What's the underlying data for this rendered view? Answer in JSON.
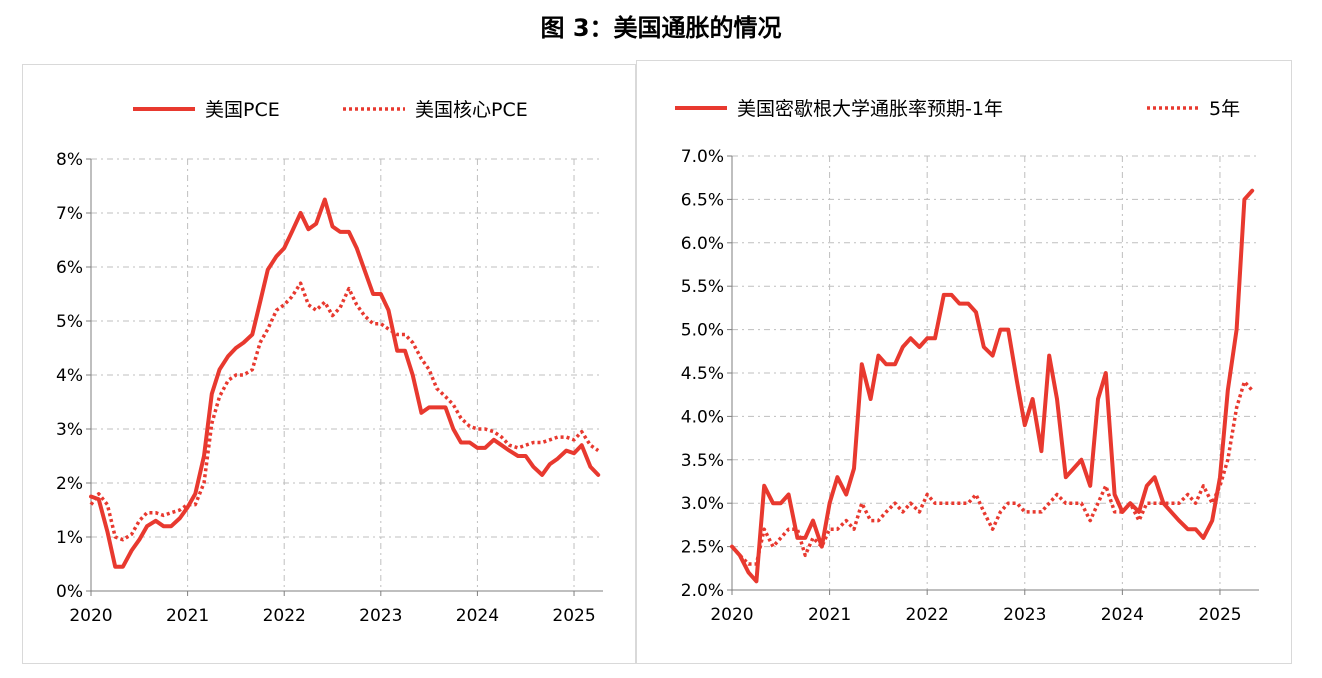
{
  "figure_title": "图 3：美国通胀的情况",
  "colors": {
    "series": "#e8392f",
    "grid": "#bfbfbf",
    "axis": "#7f7f7f"
  },
  "chart_data": [
    {
      "type": "line",
      "title": "",
      "xlabel": "",
      "ylabel": "",
      "x_ticks": [
        "2020",
        "2021",
        "2022",
        "2023",
        "2024",
        "2025"
      ],
      "y_ticks": [
        "0%",
        "1%",
        "2%",
        "3%",
        "4%",
        "5%",
        "6%",
        "7%",
        "8%"
      ],
      "xlim": [
        2020,
        2025.3
      ],
      "ylim": [
        0,
        8
      ],
      "grid": true,
      "legend_position": "top",
      "series": [
        {
          "name": "美国PCE",
          "style": "solid",
          "x": [
            2020.0,
            2020.08,
            2020.17,
            2020.25,
            2020.33,
            2020.42,
            2020.5,
            2020.58,
            2020.67,
            2020.75,
            2020.83,
            2020.92,
            2021.0,
            2021.08,
            2021.17,
            2021.25,
            2021.33,
            2021.42,
            2021.5,
            2021.58,
            2021.67,
            2021.75,
            2021.83,
            2021.92,
            2022.0,
            2022.08,
            2022.17,
            2022.25,
            2022.33,
            2022.42,
            2022.5,
            2022.58,
            2022.67,
            2022.75,
            2022.83,
            2022.92,
            2023.0,
            2023.08,
            2023.17,
            2023.25,
            2023.33,
            2023.42,
            2023.5,
            2023.58,
            2023.67,
            2023.75,
            2023.83,
            2023.92,
            2024.0,
            2024.08,
            2024.17,
            2024.25,
            2024.33,
            2024.42,
            2024.5,
            2024.58,
            2024.67,
            2024.75,
            2024.83,
            2024.92,
            2025.0,
            2025.08,
            2025.17,
            2025.25
          ],
          "values": [
            1.75,
            1.7,
            1.1,
            0.45,
            0.45,
            0.75,
            0.95,
            1.2,
            1.3,
            1.2,
            1.2,
            1.35,
            1.55,
            1.8,
            2.5,
            3.65,
            4.1,
            4.35,
            4.5,
            4.6,
            4.75,
            5.35,
            5.95,
            6.2,
            6.35,
            6.65,
            7.0,
            6.7,
            6.8,
            7.25,
            6.75,
            6.65,
            6.65,
            6.35,
            5.95,
            5.5,
            5.5,
            5.2,
            4.45,
            4.45,
            4.0,
            3.3,
            3.4,
            3.4,
            3.4,
            3.0,
            2.75,
            2.75,
            2.65,
            2.65,
            2.8,
            2.7,
            2.6,
            2.5,
            2.5,
            2.3,
            2.15,
            2.35,
            2.45,
            2.6,
            2.55,
            2.7,
            2.3,
            2.15
          ]
        },
        {
          "name": "美国核心PCE",
          "style": "dotted",
          "x": [
            2020.0,
            2020.08,
            2020.17,
            2020.25,
            2020.33,
            2020.42,
            2020.5,
            2020.58,
            2020.67,
            2020.75,
            2020.83,
            2020.92,
            2021.0,
            2021.08,
            2021.17,
            2021.25,
            2021.33,
            2021.42,
            2021.5,
            2021.58,
            2021.67,
            2021.75,
            2021.83,
            2021.92,
            2022.0,
            2022.08,
            2022.17,
            2022.25,
            2022.33,
            2022.42,
            2022.5,
            2022.58,
            2022.67,
            2022.75,
            2022.83,
            2022.92,
            2023.0,
            2023.08,
            2023.17,
            2023.25,
            2023.33,
            2023.42,
            2023.5,
            2023.58,
            2023.67,
            2023.75,
            2023.83,
            2023.92,
            2024.0,
            2024.08,
            2024.17,
            2024.25,
            2024.33,
            2024.42,
            2024.5,
            2024.58,
            2024.67,
            2024.75,
            2024.83,
            2024.92,
            2025.0,
            2025.08,
            2025.17,
            2025.25
          ],
          "values": [
            1.6,
            1.8,
            1.6,
            1.0,
            0.95,
            1.05,
            1.3,
            1.45,
            1.45,
            1.4,
            1.45,
            1.5,
            1.6,
            1.6,
            2.0,
            3.1,
            3.6,
            3.9,
            4.0,
            4.0,
            4.1,
            4.6,
            4.85,
            5.2,
            5.3,
            5.45,
            5.7,
            5.3,
            5.2,
            5.35,
            5.1,
            5.25,
            5.6,
            5.3,
            5.1,
            4.95,
            4.95,
            4.85,
            4.75,
            4.75,
            4.6,
            4.3,
            4.1,
            3.75,
            3.6,
            3.45,
            3.2,
            3.05,
            3.0,
            3.0,
            2.95,
            2.85,
            2.7,
            2.65,
            2.7,
            2.75,
            2.75,
            2.8,
            2.85,
            2.85,
            2.8,
            2.95,
            2.7,
            2.6
          ]
        }
      ]
    },
    {
      "type": "line",
      "title": "",
      "xlabel": "",
      "ylabel": "",
      "x_ticks": [
        "2020",
        "2021",
        "2022",
        "2023",
        "2024",
        "2025"
      ],
      "y_ticks": [
        "2.0%",
        "2.5%",
        "3.0%",
        "3.5%",
        "4.0%",
        "4.5%",
        "5.0%",
        "5.5%",
        "6.0%",
        "6.5%",
        "7.0%"
      ],
      "xlim": [
        2020,
        2025.4
      ],
      "ylim": [
        2.0,
        7.0
      ],
      "grid": true,
      "legend_position": "top",
      "series": [
        {
          "name": "美国密歇根大学通胀率预期-1年",
          "style": "solid",
          "x": [
            2020.0,
            2020.08,
            2020.17,
            2020.25,
            2020.33,
            2020.42,
            2020.5,
            2020.58,
            2020.67,
            2020.75,
            2020.83,
            2020.92,
            2021.0,
            2021.08,
            2021.17,
            2021.25,
            2021.33,
            2021.42,
            2021.5,
            2021.58,
            2021.67,
            2021.75,
            2021.83,
            2021.92,
            2022.0,
            2022.08,
            2022.17,
            2022.25,
            2022.33,
            2022.42,
            2022.5,
            2022.58,
            2022.67,
            2022.75,
            2022.83,
            2022.92,
            2023.0,
            2023.08,
            2023.17,
            2023.25,
            2023.33,
            2023.42,
            2023.5,
            2023.58,
            2023.67,
            2023.75,
            2023.83,
            2023.92,
            2024.0,
            2024.08,
            2024.17,
            2024.25,
            2024.33,
            2024.42,
            2024.5,
            2024.58,
            2024.67,
            2024.75,
            2024.83,
            2024.92,
            2025.0,
            2025.08,
            2025.17,
            2025.25,
            2025.33
          ],
          "values": [
            2.5,
            2.4,
            2.2,
            2.1,
            3.2,
            3.0,
            3.0,
            3.1,
            2.6,
            2.6,
            2.8,
            2.5,
            3.0,
            3.3,
            3.1,
            3.4,
            4.6,
            4.2,
            4.7,
            4.6,
            4.6,
            4.8,
            4.9,
            4.8,
            4.9,
            4.9,
            5.4,
            5.4,
            5.3,
            5.3,
            5.2,
            4.8,
            4.7,
            5.0,
            5.0,
            4.4,
            3.9,
            4.2,
            3.6,
            4.7,
            4.2,
            3.3,
            3.4,
            3.5,
            3.2,
            4.2,
            4.5,
            3.1,
            2.9,
            3.0,
            2.9,
            3.2,
            3.3,
            3.0,
            2.9,
            2.8,
            2.7,
            2.7,
            2.6,
            2.8,
            3.3,
            4.3,
            5.0,
            6.5,
            6.6
          ]
        },
        {
          "name": "5年",
          "style": "dotted",
          "x": [
            2020.0,
            2020.08,
            2020.17,
            2020.25,
            2020.33,
            2020.42,
            2020.5,
            2020.58,
            2020.67,
            2020.75,
            2020.83,
            2020.92,
            2021.0,
            2021.08,
            2021.17,
            2021.25,
            2021.33,
            2021.42,
            2021.5,
            2021.58,
            2021.67,
            2021.75,
            2021.83,
            2021.92,
            2022.0,
            2022.08,
            2022.17,
            2022.25,
            2022.33,
            2022.42,
            2022.5,
            2022.58,
            2022.67,
            2022.75,
            2022.83,
            2022.92,
            2023.0,
            2023.08,
            2023.17,
            2023.25,
            2023.33,
            2023.42,
            2023.5,
            2023.58,
            2023.67,
            2023.75,
            2023.83,
            2023.92,
            2024.0,
            2024.08,
            2024.17,
            2024.25,
            2024.33,
            2024.42,
            2024.5,
            2024.58,
            2024.67,
            2024.75,
            2024.83,
            2024.92,
            2025.0,
            2025.08,
            2025.17,
            2025.25,
            2025.33
          ],
          "values": [
            2.5,
            2.4,
            2.3,
            2.3,
            2.7,
            2.5,
            2.6,
            2.7,
            2.7,
            2.4,
            2.6,
            2.5,
            2.7,
            2.7,
            2.8,
            2.7,
            3.0,
            2.8,
            2.8,
            2.9,
            3.0,
            2.9,
            3.0,
            2.9,
            3.1,
            3.0,
            3.0,
            3.0,
            3.0,
            3.0,
            3.1,
            2.9,
            2.7,
            2.9,
            3.0,
            3.0,
            2.9,
            2.9,
            2.9,
            3.0,
            3.1,
            3.0,
            3.0,
            3.0,
            2.8,
            3.0,
            3.2,
            2.9,
            2.9,
            3.0,
            2.8,
            3.0,
            3.0,
            3.0,
            3.0,
            3.0,
            3.1,
            3.0,
            3.2,
            3.0,
            3.2,
            3.5,
            4.1,
            4.4,
            4.3
          ]
        }
      ]
    }
  ]
}
